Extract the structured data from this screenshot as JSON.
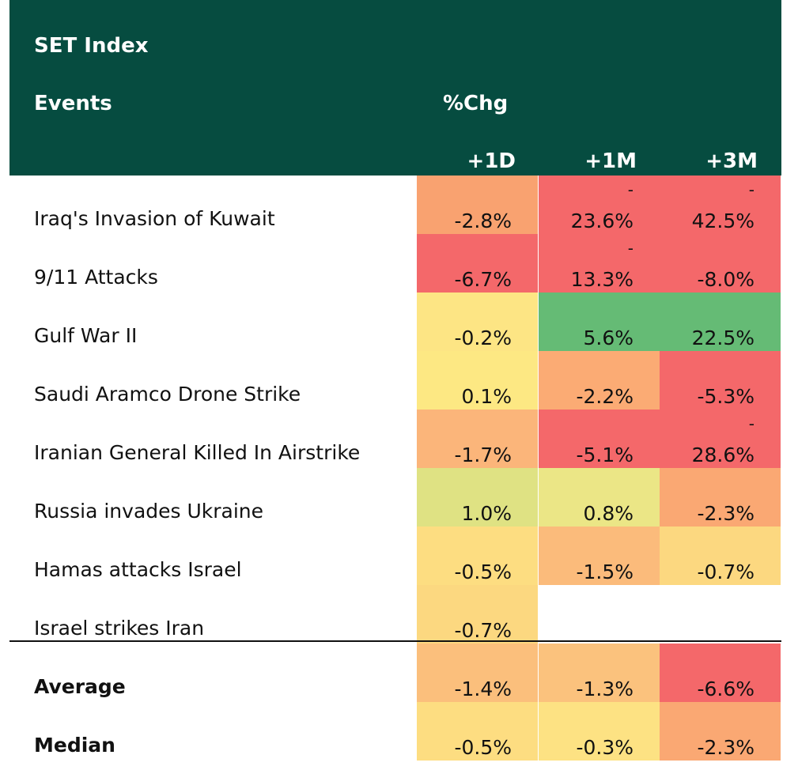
{
  "header": {
    "title": "SET Index",
    "events_label": "Events",
    "change_label": "%Chg",
    "columns": [
      "+1D",
      "+1M",
      "+3M"
    ]
  },
  "colors": {
    "header_bg": "#064c40",
    "deep_red": "#f4686a",
    "orange": "#f8a06f",
    "light_orange": "#fbb57a",
    "yellow": "#fde483",
    "light_yellow": "#fde88c",
    "yellow_green": "#e3e384",
    "green": "#65bb75"
  },
  "chart_data": {
    "type": "table",
    "title": "SET Index",
    "columns": [
      "+1D",
      "+1M",
      "+3M"
    ],
    "rows": [
      {
        "event": "Iraq's Invasion of Kuwait",
        "cells": [
          {
            "text": "-2.8%",
            "value": -2.8,
            "dash": "",
            "color": "#f9a270"
          },
          {
            "text": "23.6%",
            "value": -23.6,
            "dash": "-",
            "color": "#f4686a"
          },
          {
            "text": "42.5%",
            "value": -42.5,
            "dash": "-",
            "color": "#f4686a"
          }
        ]
      },
      {
        "event": "9/11 Attacks",
        "cells": [
          {
            "text": "-6.7%",
            "value": -6.7,
            "dash": "",
            "color": "#f4686a"
          },
          {
            "text": "13.3%",
            "value": -13.3,
            "dash": "-",
            "color": "#f4686a"
          },
          {
            "text": "-8.0%",
            "value": -8.0,
            "dash": "",
            "color": "#f4686a"
          }
        ]
      },
      {
        "event": "Gulf War II",
        "cells": [
          {
            "text": "-0.2%",
            "value": -0.2,
            "dash": "",
            "color": "#fde584"
          },
          {
            "text": "5.6%",
            "value": 5.6,
            "dash": "",
            "color": "#65bb75"
          },
          {
            "text": "22.5%",
            "value": 22.5,
            "dash": "",
            "color": "#65bb75"
          }
        ]
      },
      {
        "event": "Saudi Aramco Drone Strike",
        "cells": [
          {
            "text": "0.1%",
            "value": 0.1,
            "dash": "",
            "color": "#fde883"
          },
          {
            "text": "-2.2%",
            "value": -2.2,
            "dash": "",
            "color": "#fbab74"
          },
          {
            "text": "-5.3%",
            "value": -5.3,
            "dash": "",
            "color": "#f4686a"
          }
        ]
      },
      {
        "event": "Iranian General Killed In Airstrike",
        "cells": [
          {
            "text": "-1.7%",
            "value": -1.7,
            "dash": "",
            "color": "#fbb57a"
          },
          {
            "text": "-5.1%",
            "value": -5.1,
            "dash": "",
            "color": "#f4686a"
          },
          {
            "text": "28.6%",
            "value": -28.6,
            "dash": "-",
            "color": "#f4686a"
          }
        ]
      },
      {
        "event": "Russia invades Ukraine",
        "cells": [
          {
            "text": "1.0%",
            "value": 1.0,
            "dash": "",
            "color": "#dfe283"
          },
          {
            "text": "0.8%",
            "value": 0.8,
            "dash": "",
            "color": "#ebe686"
          },
          {
            "text": "-2.3%",
            "value": -2.3,
            "dash": "",
            "color": "#faa873"
          }
        ]
      },
      {
        "event": "Hamas attacks Israel",
        "cells": [
          {
            "text": "-0.5%",
            "value": -0.5,
            "dash": "",
            "color": "#fddd81"
          },
          {
            "text": "-1.5%",
            "value": -1.5,
            "dash": "",
            "color": "#fbbb7b"
          },
          {
            "text": "-0.7%",
            "value": -0.7,
            "dash": "",
            "color": "#fcd880"
          }
        ]
      },
      {
        "event": "Israel strikes Iran",
        "cells": [
          {
            "text": "-0.7%",
            "value": -0.7,
            "dash": "",
            "color": "#fcd880"
          }
        ]
      }
    ],
    "summary": [
      {
        "label": "Average",
        "cells": [
          {
            "text": "-1.4%",
            "value": -1.4,
            "dash": "",
            "color": "#fbbf7c"
          },
          {
            "text": "-1.3%",
            "value": -1.3,
            "dash": "",
            "color": "#fbc27d"
          },
          {
            "text": "-6.6%",
            "value": -6.6,
            "dash": "",
            "color": "#f4686a"
          }
        ]
      },
      {
        "label": "Median",
        "cells": [
          {
            "text": "-0.5%",
            "value": -0.5,
            "dash": "",
            "color": "#fddd81"
          },
          {
            "text": "-0.3%",
            "value": -0.3,
            "dash": "",
            "color": "#fde283"
          },
          {
            "text": "-2.3%",
            "value": -2.3,
            "dash": "",
            "color": "#faa873"
          }
        ]
      }
    ]
  }
}
